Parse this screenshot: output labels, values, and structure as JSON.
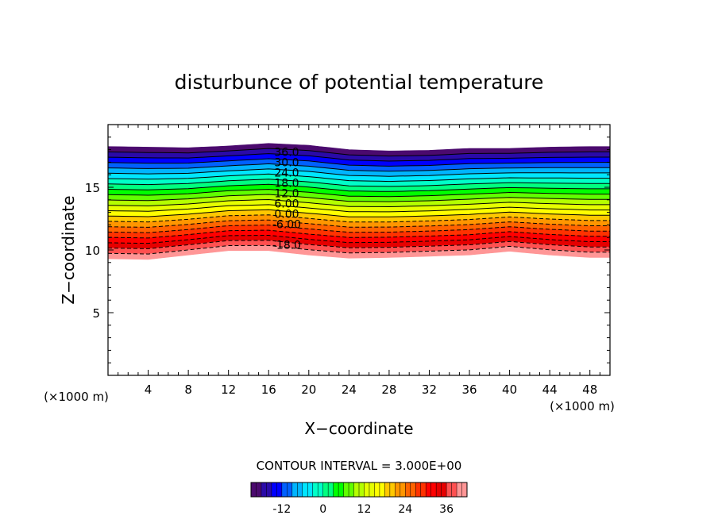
{
  "chart_data": {
    "type": "contour",
    "title": "disturbunce of potential temperature",
    "xlabel": "X−coordinate",
    "ylabel": "Z−coordinate",
    "x_unit": "(×1000 m)",
    "y_unit": "(×1000 m)",
    "xlim": [
      0,
      50
    ],
    "ylim": [
      0,
      20
    ],
    "x_ticks": [
      4,
      8,
      12,
      16,
      20,
      24,
      28,
      32,
      36,
      40,
      44,
      48
    ],
    "y_ticks": [
      5,
      10,
      15
    ],
    "contour_interval_text": "CONTOUR INTERVAL = 3.000E+00",
    "contour_labels": [
      {
        "text": "36.0",
        "value": 36
      },
      {
        "text": "30.0",
        "value": 30
      },
      {
        "text": "24.0",
        "value": 24
      },
      {
        "text": "18.0",
        "value": 18
      },
      {
        "text": "12.0",
        "value": 12
      },
      {
        "text": "6.00",
        "value": 6
      },
      {
        "text": "0.00",
        "value": 0
      },
      {
        "text": "-6.00",
        "value": -6
      },
      {
        "text": "-18.0",
        "value": -18
      }
    ],
    "levels": [
      -21,
      -18,
      -15,
      -12,
      -9,
      -6,
      -3,
      0,
      3,
      6,
      9,
      12,
      15,
      18,
      21,
      24,
      27,
      30,
      33,
      36,
      39
    ],
    "bottom_boundary": {
      "x": [
        0,
        4,
        8,
        12,
        16,
        20,
        24,
        28,
        32,
        36,
        40,
        44,
        48,
        50
      ],
      "z": [
        9.3,
        9.25,
        9.6,
        9.95,
        9.95,
        9.6,
        9.35,
        9.4,
        9.5,
        9.6,
        9.9,
        9.6,
        9.4,
        9.4
      ]
    },
    "top_boundary": {
      "x": [
        0,
        4,
        8,
        12,
        16,
        20,
        24,
        28,
        32,
        36,
        40,
        44,
        48,
        50
      ],
      "z": [
        18.25,
        18.2,
        18.15,
        18.3,
        18.5,
        18.35,
        18.0,
        17.9,
        17.95,
        18.1,
        18.1,
        18.2,
        18.25,
        18.25
      ]
    },
    "colorbar": {
      "ticks": [
        "-12",
        "0",
        "12",
        "24",
        "36"
      ],
      "tick_values": [
        -12,
        0,
        12,
        24,
        36
      ],
      "range": [
        -21,
        42
      ],
      "colors": [
        "#4b0a6e",
        "#2a0aa8",
        "#0000ff",
        "#0060ff",
        "#00b4ff",
        "#00e6ff",
        "#00ffc8",
        "#00ff80",
        "#00ff00",
        "#60ff00",
        "#b4ff00",
        "#e6ff00",
        "#ffff00",
        "#ffc800",
        "#ff9600",
        "#ff6400",
        "#ff3200",
        "#ff0000",
        "#e60000",
        "#ff5050",
        "#ff9696"
      ]
    },
    "grid": false
  }
}
